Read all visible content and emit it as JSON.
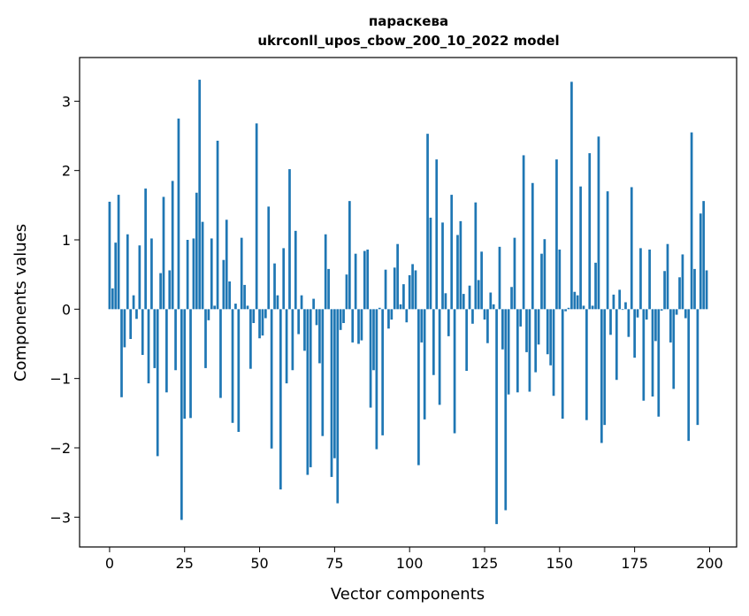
{
  "chart_data": {
    "type": "bar",
    "title": "параскева",
    "subtitle": "ukrconll_upos_cbow_200_10_2022 model",
    "xlabel": "Vector components",
    "ylabel": "Components values",
    "xlim": [
      -10,
      209
    ],
    "ylim": [
      -3.43,
      3.63
    ],
    "x_ticks": [
      0,
      25,
      50,
      75,
      100,
      125,
      150,
      175,
      200
    ],
    "y_ticks": [
      -3,
      -2,
      -1,
      0,
      1,
      2,
      3
    ],
    "x_tick_labels": [
      "0",
      "25",
      "50",
      "75",
      "100",
      "125",
      "150",
      "175",
      "200"
    ],
    "y_tick_labels": [
      "−3",
      "−2",
      "−1",
      "0",
      "1",
      "2",
      "3"
    ],
    "bar_color": "#1f77b4",
    "grid": false,
    "values": [
      1.55,
      0.3,
      0.96,
      1.65,
      -1.27,
      -0.55,
      1.08,
      -0.43,
      0.2,
      -0.14,
      0.92,
      -0.66,
      1.74,
      -1.07,
      1.02,
      -0.85,
      -2.12,
      0.52,
      1.62,
      -1.2,
      0.56,
      1.85,
      -0.88,
      2.75,
      -3.04,
      -1.58,
      1.0,
      -1.57,
      1.02,
      1.68,
      3.31,
      1.26,
      -0.85,
      -0.16,
      1.02,
      0.05,
      2.43,
      -1.28,
      0.71,
      1.29,
      0.4,
      -1.64,
      0.08,
      -1.77,
      1.03,
      0.35,
      0.05,
      -0.86,
      -0.2,
      2.68,
      -0.42,
      -0.38,
      -0.13,
      1.48,
      -2.01,
      0.66,
      0.2,
      -2.6,
      0.88,
      -1.07,
      2.02,
      -0.88,
      1.13,
      -0.36,
      0.2,
      -0.6,
      -2.39,
      -2.28,
      0.15,
      -0.23,
      -0.78,
      -1.83,
      1.08,
      0.58,
      -2.42,
      -2.15,
      -2.8,
      -0.3,
      -0.2,
      0.5,
      1.56,
      -0.48,
      0.8,
      -0.5,
      -0.45,
      0.84,
      0.86,
      -1.42,
      -0.88,
      -2.02,
      0.02,
      -1.82,
      0.57,
      -0.28,
      -0.15,
      0.6,
      0.94,
      0.07,
      0.36,
      -0.19,
      0.49,
      0.65,
      0.56,
      -2.25,
      -0.48,
      -1.59,
      2.53,
      1.32,
      -0.95,
      2.16,
      -1.38,
      1.25,
      0.23,
      -0.39,
      1.65,
      -1.79,
      1.07,
      1.27,
      0.22,
      -0.89,
      0.34,
      -0.21,
      1.54,
      0.42,
      0.83,
      -0.15,
      -0.49,
      0.24,
      0.07,
      -3.1,
      0.9,
      -0.58,
      -2.9,
      -1.23,
      0.32,
      1.03,
      -1.2,
      -0.25,
      2.22,
      -0.62,
      -1.19,
      1.82,
      -0.91,
      -0.51,
      0.8,
      1.01,
      -0.65,
      -0.81,
      -1.25,
      2.16,
      0.86,
      -1.58,
      -0.03,
      0.02,
      3.28,
      0.25,
      0.2,
      1.77,
      0.05,
      -1.6,
      2.25,
      0.05,
      0.67,
      2.49,
      -1.93,
      -1.67,
      1.7,
      -0.37,
      0.21,
      -1.02,
      0.28,
      -0.01,
      0.1,
      -0.4,
      1.76,
      -0.7,
      -0.12,
      0.88,
      -1.32,
      -0.15,
      0.86,
      -1.26,
      -0.46,
      -1.55,
      -0.02,
      0.55,
      0.94,
      -0.48,
      -1.15,
      -0.08,
      0.46,
      0.79,
      -0.13,
      -1.9,
      2.55,
      0.58,
      -1.67,
      1.38,
      1.56,
      0.56
    ]
  }
}
